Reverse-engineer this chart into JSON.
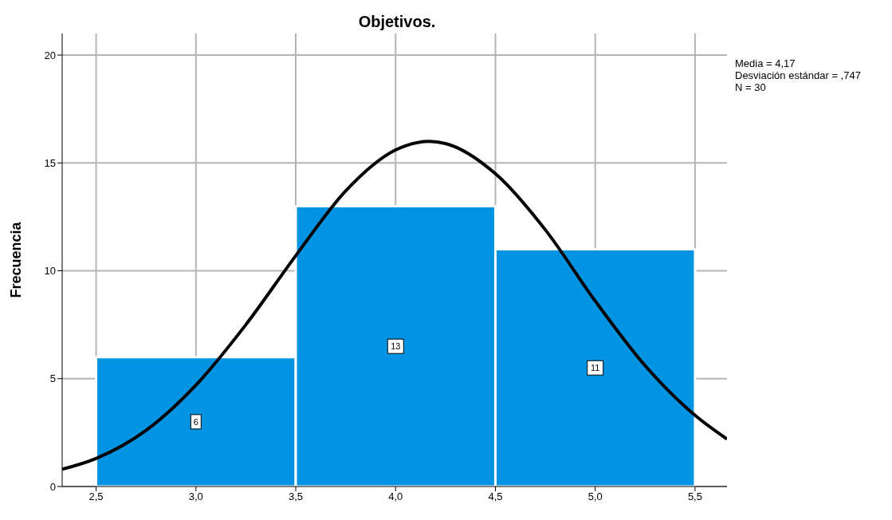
{
  "chart_data": {
    "type": "histogram",
    "title": "Objetivos.",
    "ylabel": "Frecuencia",
    "bins": [
      2.5,
      3.5,
      4.5,
      5.5
    ],
    "values": [
      6,
      13,
      11
    ],
    "color": "#0094e3",
    "value_labels": [
      "6",
      "13",
      "11"
    ],
    "series": [
      {
        "type": "line",
        "color": "#000000",
        "x": [
          2.33,
          2.5,
          2.75,
          3.0,
          3.25,
          3.5,
          3.75,
          4.0,
          4.17,
          4.25,
          4.5,
          4.75,
          5.0,
          5.25,
          5.5,
          5.66
        ],
        "values": [
          0.8,
          1.3,
          2.6,
          4.7,
          7.5,
          10.7,
          13.7,
          15.6,
          16.0,
          15.9,
          14.5,
          11.9,
          8.6,
          5.6,
          3.3,
          2.2
        ]
      }
    ],
    "xlim": [
      2.33,
      5.66
    ],
    "xticks": [
      {
        "value": 2.5,
        "label": "2,5"
      },
      {
        "value": 3.0,
        "label": "3,0"
      },
      {
        "value": 3.5,
        "label": "3,5"
      },
      {
        "value": 4.0,
        "label": "4,0"
      },
      {
        "value": 4.5,
        "label": "4,5"
      },
      {
        "value": 5.0,
        "label": "5,0"
      },
      {
        "value": 5.5,
        "label": "5,5"
      }
    ],
    "ylim": [
      0,
      21
    ],
    "yticks": [
      0,
      5,
      10,
      15,
      20
    ],
    "grid": true,
    "annotations": [
      "Media = 4,17",
      "Desviación estándar = ,747",
      "N = 30"
    ]
  }
}
